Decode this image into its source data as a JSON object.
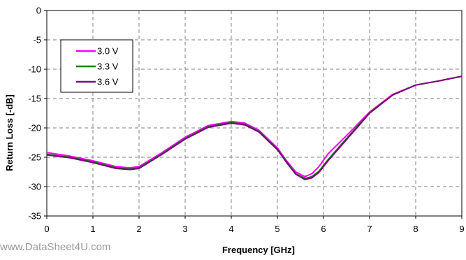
{
  "chart_data": {
    "type": "line",
    "xlabel": "Frequency [GHz]",
    "ylabel": "Return Loss [-dB]",
    "xlim": [
      0,
      9
    ],
    "ylim": [
      -35,
      0
    ],
    "xticks": [
      0,
      1,
      2,
      3,
      4,
      5,
      6,
      7,
      8,
      9
    ],
    "yticks": [
      0,
      -5,
      -10,
      -15,
      -20,
      -25,
      -30,
      -35
    ],
    "grid": "dashed",
    "legend_position": "top-left",
    "series": [
      {
        "name": "3.0 V",
        "color": "#ff00ff",
        "x": [
          0,
          0.5,
          1,
          1.5,
          1.8,
          2,
          2.5,
          3,
          3.5,
          4,
          4.3,
          4.6,
          5,
          5.2,
          5.4,
          5.6,
          5.75,
          5.9,
          6.1,
          6.5,
          7,
          7.5,
          8,
          8.5,
          9
        ],
        "y": [
          -24.2,
          -24.8,
          -25.6,
          -26.6,
          -26.8,
          -26.6,
          -24.2,
          -21.6,
          -19.6,
          -18.9,
          -19.2,
          -20.4,
          -23.4,
          -25.6,
          -27.5,
          -28.3,
          -27.8,
          -26.6,
          -24.4,
          -21.3,
          -17.3,
          -14.3,
          -12.7,
          -12,
          -11.2
        ]
      },
      {
        "name": "3.3 V",
        "color": "#008000",
        "x": [
          0,
          0.5,
          1,
          1.5,
          1.8,
          2,
          2.5,
          3,
          3.5,
          4,
          4.3,
          4.6,
          5,
          5.2,
          5.4,
          5.6,
          5.75,
          5.9,
          6.1,
          6.5,
          7,
          7.5,
          8,
          8.5,
          9
        ],
        "y": [
          -24.5,
          -25,
          -25.8,
          -26.8,
          -27,
          -26.8,
          -24.4,
          -21.8,
          -19.8,
          -19.1,
          -19.4,
          -20.6,
          -23.6,
          -25.8,
          -27.8,
          -28.6,
          -28.3,
          -27.4,
          -25.4,
          -21.8,
          -17.4,
          -14.4,
          -12.7,
          -12,
          -11.2
        ]
      },
      {
        "name": "3.6 V",
        "color": "#800080",
        "x": [
          0,
          0.5,
          1,
          1.5,
          1.8,
          2,
          2.5,
          3,
          3.5,
          4,
          4.3,
          4.6,
          5,
          5.2,
          5.4,
          5.6,
          5.75,
          5.9,
          6.1,
          6.5,
          7,
          7.5,
          8,
          8.5,
          9
        ],
        "y": [
          -24.6,
          -25.1,
          -25.9,
          -26.9,
          -27.1,
          -26.9,
          -24.5,
          -21.9,
          -19.9,
          -19.2,
          -19.5,
          -20.7,
          -23.7,
          -25.9,
          -27.9,
          -28.8,
          -28.5,
          -27.6,
          -25.6,
          -22,
          -17.5,
          -14.4,
          -12.7,
          -12,
          -11.2
        ]
      }
    ]
  },
  "watermark": "www.DataSheet4U.com"
}
